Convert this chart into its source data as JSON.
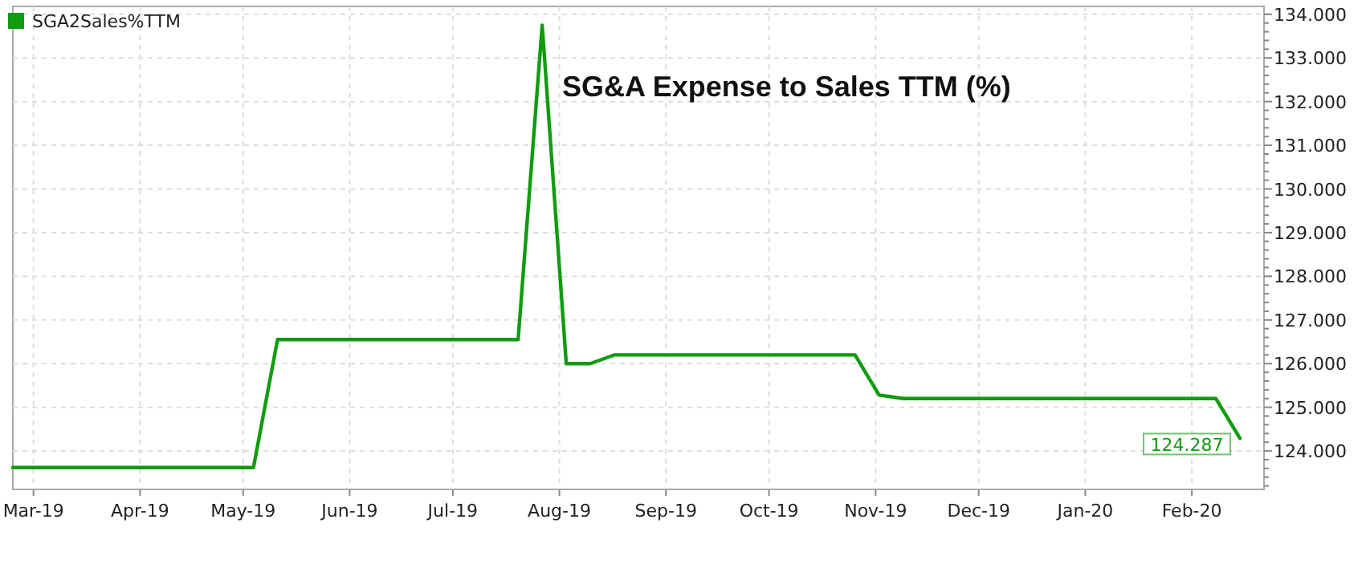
{
  "chart_data": {
    "type": "line",
    "title": "SG&A Expense to Sales TTM (%)",
    "x": [
      "2019-02-23",
      "2019-03-02",
      "2019-03-09",
      "2019-03-16",
      "2019-03-23",
      "2019-03-30",
      "2019-04-06",
      "2019-04-13",
      "2019-04-20",
      "2019-04-27",
      "2019-05-04",
      "2019-05-11",
      "2019-05-18",
      "2019-05-25",
      "2019-06-01",
      "2019-06-08",
      "2019-06-15",
      "2019-06-22",
      "2019-06-29",
      "2019-07-06",
      "2019-07-13",
      "2019-07-20",
      "2019-07-27",
      "2019-08-03",
      "2019-08-10",
      "2019-08-17",
      "2019-08-24",
      "2019-08-31",
      "2019-09-07",
      "2019-09-14",
      "2019-09-21",
      "2019-09-28",
      "2019-10-05",
      "2019-10-12",
      "2019-10-19",
      "2019-10-26",
      "2019-11-02",
      "2019-11-09",
      "2019-11-16",
      "2019-11-23",
      "2019-11-30",
      "2019-12-07",
      "2019-12-14",
      "2019-12-21",
      "2019-12-28",
      "2020-01-04",
      "2020-01-11",
      "2020-01-18",
      "2020-01-25",
      "2020-02-01",
      "2020-02-08",
      "2020-02-15"
    ],
    "series": [
      {
        "name": "SGA2Sales%TTM",
        "color": "#109c10",
        "values": [
          123.62,
          123.62,
          123.62,
          123.62,
          123.62,
          123.62,
          123.62,
          123.62,
          123.62,
          123.62,
          123.62,
          126.55,
          126.55,
          126.55,
          126.55,
          126.55,
          126.55,
          126.55,
          126.55,
          126.55,
          126.55,
          126.55,
          133.75,
          126.0,
          126.0,
          126.2,
          126.2,
          126.2,
          126.2,
          126.2,
          126.2,
          126.2,
          126.2,
          126.2,
          126.2,
          126.2,
          125.28,
          125.2,
          125.2,
          125.2,
          125.2,
          125.2,
          125.2,
          125.2,
          125.2,
          125.2,
          125.2,
          125.2,
          125.2,
          125.2,
          125.2,
          124.287
        ]
      }
    ],
    "annotations": [
      {
        "text": "124.287",
        "x": "2020-02-15",
        "y": 124.287
      }
    ],
    "xlim": [
      "2019-02-23",
      "2020-02-22"
    ],
    "xticks": [
      {
        "value": "2019-03-01",
        "label": "Mar-19"
      },
      {
        "value": "2019-04-01",
        "label": "Apr-19"
      },
      {
        "value": "2019-05-01",
        "label": "May-19"
      },
      {
        "value": "2019-06-01",
        "label": "Jun-19"
      },
      {
        "value": "2019-07-01",
        "label": "Jul-19"
      },
      {
        "value": "2019-08-01",
        "label": "Aug-19"
      },
      {
        "value": "2019-09-01",
        "label": "Sep-19"
      },
      {
        "value": "2019-10-01",
        "label": "Oct-19"
      },
      {
        "value": "2019-11-01",
        "label": "Nov-19"
      },
      {
        "value": "2019-12-01",
        "label": "Dec-19"
      },
      {
        "value": "2020-01-01",
        "label": "Jan-20"
      },
      {
        "value": "2020-02-01",
        "label": "Feb-20"
      }
    ],
    "ylim": [
      123.12,
      134.18
    ],
    "yticks": [
      {
        "value": 124,
        "label": "124.000"
      },
      {
        "value": 125,
        "label": "125.000"
      },
      {
        "value": 126,
        "label": "126.000"
      },
      {
        "value": 127,
        "label": "127.000"
      },
      {
        "value": 128,
        "label": "128.000"
      },
      {
        "value": 129,
        "label": "129.000"
      },
      {
        "value": 130,
        "label": "130.000"
      },
      {
        "value": 131,
        "label": "131.000"
      },
      {
        "value": 132,
        "label": "132.000"
      },
      {
        "value": 133,
        "label": "133.000"
      },
      {
        "value": 134,
        "label": "134.000"
      },
      {
        "value": 123.2,
        "label": null
      },
      {
        "value": 123.4,
        "label": null
      },
      {
        "value": 123.6,
        "label": null
      },
      {
        "value": 123.8,
        "label": null
      },
      {
        "value": 124.2,
        "label": null
      },
      {
        "value": 124.4,
        "label": null
      },
      {
        "value": 124.6,
        "label": null
      },
      {
        "value": 124.8,
        "label": null
      },
      {
        "value": 125.2,
        "label": null
      },
      {
        "value": 125.4,
        "label": null
      },
      {
        "value": 125.6,
        "label": null
      },
      {
        "value": 125.8,
        "label": null
      },
      {
        "value": 126.2,
        "label": null
      },
      {
        "value": 126.4,
        "label": null
      },
      {
        "value": 126.6,
        "label": null
      },
      {
        "value": 126.8,
        "label": null
      },
      {
        "value": 127.2,
        "label": null
      },
      {
        "value": 127.4,
        "label": null
      },
      {
        "value": 127.6,
        "label": null
      },
      {
        "value": 127.8,
        "label": null
      },
      {
        "value": 128.2,
        "label": null
      },
      {
        "value": 128.4,
        "label": null
      },
      {
        "value": 128.6,
        "label": null
      },
      {
        "value": 128.8,
        "label": null
      },
      {
        "value": 129.2,
        "label": null
      },
      {
        "value": 129.4,
        "label": null
      },
      {
        "value": 129.6,
        "label": null
      },
      {
        "value": 129.8,
        "label": null
      },
      {
        "value": 130.2,
        "label": null
      },
      {
        "value": 130.4,
        "label": null
      },
      {
        "value": 130.6,
        "label": null
      },
      {
        "value": 130.8,
        "label": null
      },
      {
        "value": 131.2,
        "label": null
      },
      {
        "value": 131.4,
        "label": null
      },
      {
        "value": 131.6,
        "label": null
      },
      {
        "value": 131.8,
        "label": null
      },
      {
        "value": 132.2,
        "label": null
      },
      {
        "value": 132.4,
        "label": null
      },
      {
        "value": 132.6,
        "label": null
      },
      {
        "value": 132.8,
        "label": null
      },
      {
        "value": 133.2,
        "label": null
      },
      {
        "value": 133.4,
        "label": null
      },
      {
        "value": 133.6,
        "label": null
      },
      {
        "value": 133.8,
        "label": null
      },
      {
        "value": 134.0,
        "label": null
      }
    ],
    "grid": true,
    "legend": "top left",
    "line_style": "solid"
  }
}
